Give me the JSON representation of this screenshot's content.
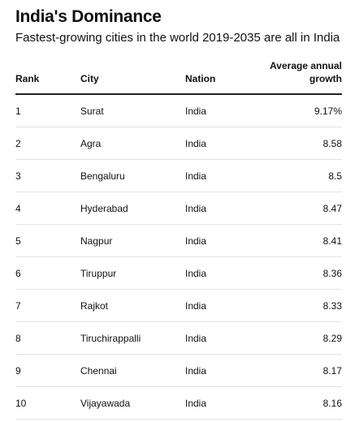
{
  "header": {
    "title": "India's Dominance",
    "subtitle": "Fastest-growing cities in the world 2019-2035 are all in India"
  },
  "chart_data": {
    "type": "table",
    "columns": [
      "Rank",
      "City",
      "Nation",
      "Average annual growth"
    ],
    "rows": [
      [
        "1",
        "Surat",
        "India",
        "9.17%"
      ],
      [
        "2",
        "Agra",
        "India",
        "8.58"
      ],
      [
        "3",
        "Bengaluru",
        "India",
        "8.5"
      ],
      [
        "4",
        "Hyderabad",
        "India",
        "8.47"
      ],
      [
        "5",
        "Nagpur",
        "India",
        "8.41"
      ],
      [
        "6",
        "Tiruppur",
        "India",
        "8.36"
      ],
      [
        "7",
        "Rajkot",
        "India",
        "8.33"
      ],
      [
        "8",
        "Tiruchirappalli",
        "India",
        "8.29"
      ],
      [
        "9",
        "Chennai",
        "India",
        "8.17"
      ],
      [
        "10",
        "Vijayawada",
        "India",
        "8.16"
      ]
    ]
  }
}
